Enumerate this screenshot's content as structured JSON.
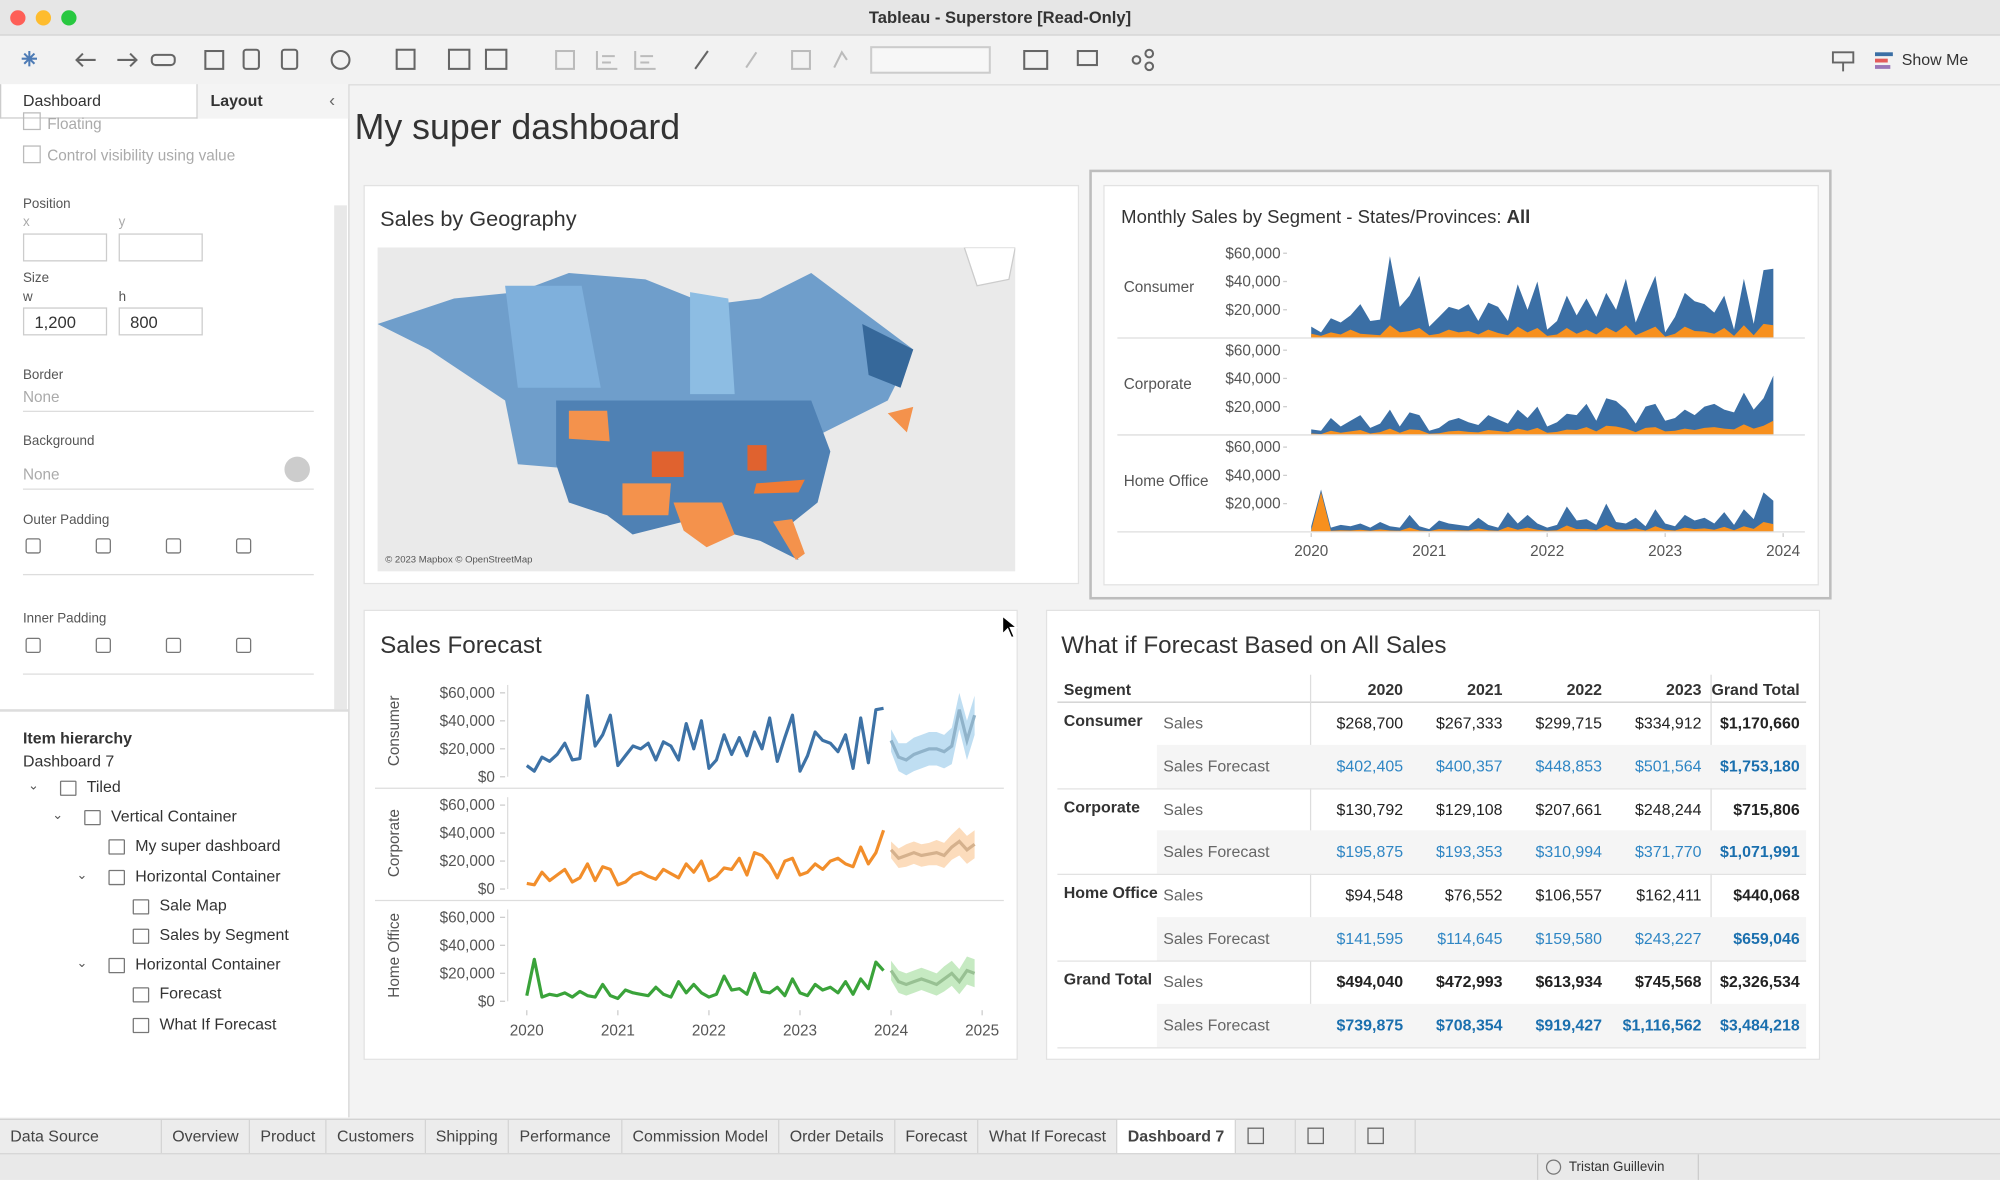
{
  "window": {
    "title": "Tableau - Superstore [Read-Only]"
  },
  "toolbar": {
    "show_me": "Show Me"
  },
  "side_panel": {
    "tabs": [
      {
        "label": "Dashboard",
        "active": false
      },
      {
        "label": "Layout",
        "active": true
      }
    ],
    "floating": "Floating",
    "control_visibility": "Control visibility using value",
    "position": "Position",
    "x_label": "x",
    "y_label": "y",
    "size": "Size",
    "w_label": "w",
    "h_label": "h",
    "w": "1,200",
    "h": "800",
    "border": "Border",
    "border_value": "None",
    "background": "Background",
    "background_value": "None",
    "outer_padding": "Outer Padding",
    "inner_padding": "Inner Padding",
    "item_hierarchy": "Item hierarchy",
    "dashboard_name": "Dashboard 7",
    "tree": [
      {
        "label": "Tiled",
        "children": [
          {
            "label": "Vertical Container",
            "children": [
              {
                "label": "My super dashboard"
              },
              {
                "label": "Horizontal Container",
                "children": [
                  {
                    "label": "Sale Map"
                  },
                  {
                    "label": "Sales by Segment"
                  }
                ]
              },
              {
                "label": "Horizontal Container",
                "children": [
                  {
                    "label": "Forecast"
                  },
                  {
                    "label": "What If Forecast"
                  }
                ]
              }
            ]
          }
        ]
      }
    ]
  },
  "dashboard": {
    "title": "My super dashboard",
    "map": {
      "title": "Sales by Geography",
      "attribution": "© 2023 Mapbox © OpenStreetMap"
    },
    "segment_chart": {
      "title": "Monthly Sales by Segment - States/Provinces:",
      "filter_value": "All",
      "ylim": [
        0,
        65000
      ],
      "yticks": [
        {
          "value": 20000,
          "label": "$20,000"
        },
        {
          "value": 40000,
          "label": "$40,000"
        },
        {
          "value": 60000,
          "label": "$60,000"
        }
      ],
      "xlim": [
        2020,
        2024
      ],
      "xticks": [
        2020,
        2021,
        2022,
        2023,
        2024
      ],
      "sales_color": "#3b6fa5",
      "second_color": "#f7901e"
    },
    "forecast_chart": {
      "title": "Sales Forecast",
      "ylim": [
        0,
        62000
      ],
      "yticks": [
        {
          "value": 0,
          "label": "$0"
        },
        {
          "value": 20000,
          "label": "$20,000"
        },
        {
          "value": 40000,
          "label": "$40,000"
        },
        {
          "value": 60000,
          "label": "$60,000"
        }
      ],
      "xlim": [
        2020,
        2025
      ],
      "xticks": [
        2020,
        2021,
        2022,
        2023,
        2024,
        2025
      ]
    },
    "segments": [
      {
        "name": "Consumer",
        "color": "#3d72a6",
        "band_color": "#a9d3ee",
        "sales": [
          8000,
          4000,
          14000,
          11000,
          16000,
          24000,
          12000,
          13000,
          58000,
          22000,
          30000,
          44000,
          8000,
          15000,
          22000,
          20000,
          24000,
          12000,
          25000,
          22000,
          12000,
          38000,
          20000,
          40000,
          6000,
          12000,
          30000,
          16000,
          28000,
          15000,
          32000,
          20000,
          42000,
          11000,
          28000,
          44000,
          4000,
          15000,
          32000,
          26000,
          24000,
          18000,
          30000,
          6000,
          42000,
          10000,
          48000,
          49000
        ],
        "second": [
          3000,
          1500,
          4000,
          2500,
          6000,
          3000,
          2500,
          2000,
          9000,
          4000,
          5000,
          7000,
          2000,
          3000,
          6000,
          4000,
          5000,
          2500,
          6000,
          3500,
          2000,
          8000,
          4000,
          7000,
          1500,
          2500,
          7000,
          3000,
          6000,
          2500,
          7500,
          4000,
          9000,
          2000,
          5000,
          8000,
          1000,
          3000,
          8000,
          5000,
          4500,
          3000,
          7000,
          1500,
          9000,
          2000,
          10000,
          9000
        ],
        "forecast": [
          26000,
          14000,
          12000,
          16000,
          18000,
          20000,
          20000,
          18000,
          22000,
          48000,
          26000,
          44000
        ],
        "forecast_low": [
          18000,
          4000,
          1000,
          4000,
          6000,
          8000,
          8000,
          6000,
          9000,
          34000,
          12000,
          30000
        ],
        "forecast_high": [
          34000,
          24000,
          24000,
          28000,
          30000,
          32000,
          32000,
          30000,
          35000,
          60000,
          40000,
          58000
        ]
      },
      {
        "name": "Corporate",
        "color": "#f28e2b",
        "band_color": "#fbd0a6",
        "sales": [
          4000,
          3000,
          12000,
          6000,
          10000,
          14000,
          5000,
          8000,
          18000,
          6000,
          16000,
          14000,
          3000,
          5000,
          10000,
          12000,
          9000,
          7000,
          14000,
          11000,
          8000,
          18000,
          12000,
          20000,
          6000,
          9000,
          15000,
          14000,
          22000,
          10000,
          26000,
          24000,
          18000,
          8000,
          20000,
          22000,
          10000,
          12000,
          18000,
          14000,
          20000,
          22000,
          18000,
          16000,
          30000,
          18000,
          26000,
          42000
        ],
        "second": [
          1000,
          500,
          3000,
          1500,
          2500,
          3500,
          1000,
          2000,
          4500,
          1500,
          4000,
          3500,
          800,
          1200,
          2500,
          3000,
          2200,
          1800,
          3500,
          2800,
          2000,
          4500,
          3000,
          5000,
          1500,
          2200,
          3800,
          3500,
          5500,
          2500,
          6500,
          6000,
          4500,
          2000,
          5000,
          5500,
          2500,
          3000,
          4500,
          3500,
          5000,
          5500,
          4500,
          4000,
          7500,
          4500,
          6500,
          10000
        ],
        "forecast": [
          28000,
          22000,
          24000,
          26000,
          24000,
          25000,
          26000,
          24000,
          30000,
          34000,
          28000,
          32000
        ],
        "forecast_low": [
          22000,
          15000,
          16000,
          18000,
          16000,
          17000,
          17000,
          15000,
          21000,
          24000,
          18000,
          22000
        ],
        "forecast_high": [
          34000,
          29000,
          32000,
          34000,
          32000,
          33000,
          35000,
          33000,
          39000,
          44000,
          38000,
          42000
        ]
      },
      {
        "name": "Home Office",
        "color": "#3aa33a",
        "band_color": "#b3e3ad",
        "sales": [
          4000,
          30000,
          3000,
          5000,
          4000,
          6000,
          3000,
          7000,
          4000,
          3000,
          12000,
          4000,
          2000,
          8000,
          6000,
          5000,
          4000,
          10000,
          5000,
          3000,
          14000,
          6000,
          12000,
          6000,
          3000,
          5000,
          18000,
          8000,
          9000,
          5000,
          20000,
          7000,
          6000,
          10000,
          4000,
          16000,
          6000,
          4000,
          12000,
          8000,
          10000,
          6000,
          14000,
          5000,
          16000,
          9000,
          28000,
          22000
        ],
        "second": [
          1000,
          28000,
          800,
          1200,
          1000,
          1500,
          800,
          1800,
          1000,
          800,
          3000,
          1000,
          500,
          2000,
          1500,
          1200,
          1000,
          2500,
          1200,
          800,
          3500,
          1500,
          3000,
          1500,
          800,
          1200,
          4500,
          2000,
          2200,
          1200,
          5000,
          1800,
          1500,
          2500,
          1000,
          4000,
          1500,
          1000,
          3000,
          2000,
          2500,
          1500,
          3500,
          1200,
          4000,
          2200,
          7000,
          5500
        ],
        "forecast": [
          22000,
          14000,
          12000,
          14000,
          16000,
          14000,
          12000,
          16000,
          20000,
          14000,
          22000,
          20000
        ],
        "forecast_low": [
          15000,
          6000,
          4000,
          6000,
          8000,
          6000,
          4000,
          7000,
          11000,
          5000,
          12000,
          10000
        ],
        "forecast_high": [
          29000,
          22000,
          20000,
          22000,
          24000,
          22000,
          20000,
          25000,
          29000,
          23000,
          32000,
          30000
        ]
      }
    ],
    "table": {
      "title": "What if Forecast Based on All Sales",
      "segment_header": "Segment",
      "columns": [
        "2020",
        "2021",
        "2022",
        "2023",
        "Grand Total"
      ],
      "groups": [
        {
          "segment": "Consumer",
          "rows": [
            {
              "measure": "Sales",
              "values": [
                "$268,700",
                "$267,333",
                "$299,715",
                "$334,912",
                "$1,170,660"
              ]
            },
            {
              "measure": "Sales Forecast",
              "values": [
                "$402,405",
                "$400,357",
                "$448,853",
                "$501,564",
                "$1,753,180"
              ]
            }
          ]
        },
        {
          "segment": "Corporate",
          "rows": [
            {
              "measure": "Sales",
              "values": [
                "$130,792",
                "$129,108",
                "$207,661",
                "$248,244",
                "$715,806"
              ]
            },
            {
              "measure": "Sales Forecast",
              "values": [
                "$195,875",
                "$193,353",
                "$310,994",
                "$371,770",
                "$1,071,991"
              ]
            }
          ]
        },
        {
          "segment": "Home Office",
          "rows": [
            {
              "measure": "Sales",
              "values": [
                "$94,548",
                "$76,552",
                "$106,557",
                "$162,411",
                "$440,068"
              ]
            },
            {
              "measure": "Sales Forecast",
              "values": [
                "$141,595",
                "$114,645",
                "$159,580",
                "$243,227",
                "$659,046"
              ]
            }
          ]
        },
        {
          "segment": "Grand Total",
          "rows": [
            {
              "measure": "Sales",
              "values": [
                "$494,040",
                "$472,993",
                "$613,934",
                "$745,568",
                "$2,326,534"
              ]
            },
            {
              "measure": "Sales Forecast",
              "values": [
                "$739,875",
                "$708,354",
                "$919,427",
                "$1,116,562",
                "$3,484,218"
              ]
            }
          ]
        }
      ]
    }
  },
  "tabs": [
    {
      "label": "Data Source",
      "active": false
    },
    {
      "label": "Overview",
      "active": false
    },
    {
      "label": "Product",
      "active": false
    },
    {
      "label": "Customers",
      "active": false
    },
    {
      "label": "Shipping",
      "active": false
    },
    {
      "label": "Performance",
      "active": false
    },
    {
      "label": "Commission Model",
      "active": false
    },
    {
      "label": "Order Details",
      "active": false
    },
    {
      "label": "Forecast",
      "active": false
    },
    {
      "label": "What If Forecast",
      "active": false
    },
    {
      "label": "Dashboard 7",
      "active": true
    }
  ],
  "status": {
    "user": "Tristan Guillevin"
  }
}
